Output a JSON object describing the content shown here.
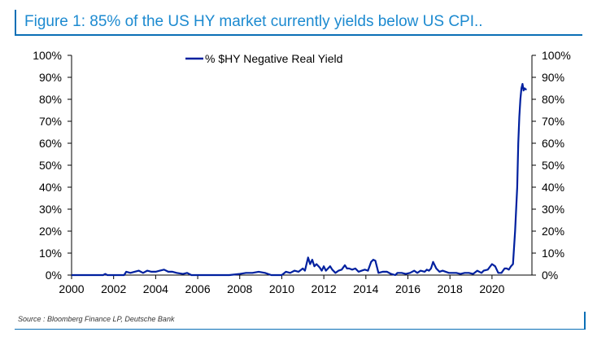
{
  "figure_title": "Figure 1: 85% of the US HY market currently yields below US CPI..",
  "source": "Source : Bloomberg Finance LP, Deutsche Bank",
  "chart_data": {
    "type": "line",
    "title": "Figure 1: 85% of the US HY market currently yields below US CPI..",
    "xlabel": "",
    "ylabel": "",
    "xlim": [
      2000,
      2021.9
    ],
    "ylim": [
      0,
      100
    ],
    "x_ticks": [
      2000,
      2002,
      2004,
      2006,
      2008,
      2010,
      2012,
      2014,
      2016,
      2018,
      2020
    ],
    "x_tick_labels": [
      "2000",
      "2002",
      "2004",
      "2006",
      "2008",
      "2010",
      "2012",
      "2014",
      "2016",
      "2018",
      "2020"
    ],
    "y_ticks": [
      0,
      10,
      20,
      30,
      40,
      50,
      60,
      70,
      80,
      90,
      100
    ],
    "y_tick_labels": [
      "0%",
      "10%",
      "20%",
      "30%",
      "40%",
      "50%",
      "60%",
      "70%",
      "80%",
      "90%",
      "100%"
    ],
    "y2_tick_labels": [
      "0%",
      "10%",
      "20%",
      "30%",
      "40%",
      "50%",
      "60%",
      "70%",
      "80%",
      "90%",
      "100%"
    ],
    "grid": false,
    "legend_position": "top-center",
    "series": [
      {
        "name": "% $HY Negative Real Yield",
        "color": "#00209f",
        "x": [
          2000.0,
          2000.5,
          2001.0,
          2001.5,
          2001.6,
          2001.7,
          2002.0,
          2002.5,
          2002.6,
          2002.8,
          2003.0,
          2003.2,
          2003.4,
          2003.6,
          2003.8,
          2004.0,
          2004.2,
          2004.4,
          2004.6,
          2004.8,
          2005.0,
          2005.3,
          2005.5,
          2005.7,
          2006.0,
          2006.2,
          2006.5,
          2007.0,
          2007.5,
          2008.0,
          2008.3,
          2008.6,
          2008.9,
          2009.2,
          2009.5,
          2009.8,
          2010.0,
          2010.2,
          2010.4,
          2010.6,
          2010.8,
          2011.0,
          2011.1,
          2011.25,
          2011.35,
          2011.45,
          2011.55,
          2011.65,
          2011.8,
          2011.9,
          2012.0,
          2012.1,
          2012.2,
          2012.3,
          2012.4,
          2012.55,
          2012.7,
          2012.85,
          2013.0,
          2013.1,
          2013.2,
          2013.35,
          2013.5,
          2013.65,
          2013.8,
          2013.95,
          2014.1,
          2014.25,
          2014.35,
          2014.45,
          2014.6,
          2014.8,
          2015.0,
          2015.2,
          2015.4,
          2015.5,
          2015.7,
          2015.9,
          2016.1,
          2016.3,
          2016.45,
          2016.6,
          2016.8,
          2016.9,
          2017.0,
          2017.1,
          2017.2,
          2017.35,
          2017.5,
          2017.65,
          2017.8,
          2017.95,
          2018.1,
          2018.3,
          2018.5,
          2018.7,
          2018.9,
          2019.1,
          2019.3,
          2019.5,
          2019.6,
          2019.8,
          2020.0,
          2020.15,
          2020.3,
          2020.45,
          2020.6,
          2020.7,
          2020.8,
          2020.9,
          2021.0,
          2021.1,
          2021.2,
          2021.25,
          2021.3,
          2021.35,
          2021.4,
          2021.45,
          2021.5,
          2021.55,
          2021.6,
          2021.65
        ],
        "y": [
          0.0,
          0.0,
          0.0,
          0.0,
          0.5,
          0.0,
          0.0,
          0.0,
          1.5,
          1.0,
          1.5,
          2.0,
          1.0,
          2.0,
          1.5,
          1.5,
          2.0,
          2.5,
          1.5,
          1.5,
          1.0,
          0.5,
          1.0,
          0.0,
          0.0,
          0.0,
          0.0,
          0.0,
          0.0,
          0.5,
          1.0,
          1.0,
          1.5,
          1.0,
          0.0,
          0.0,
          0.0,
          1.5,
          1.0,
          2.0,
          1.5,
          3.0,
          2.0,
          8.0,
          5.0,
          7.0,
          4.0,
          5.0,
          3.5,
          2.0,
          4.0,
          2.0,
          3.0,
          4.0,
          2.5,
          1.0,
          2.0,
          2.5,
          4.5,
          3.0,
          3.0,
          2.5,
          3.0,
          1.5,
          2.0,
          2.5,
          2.0,
          6.0,
          7.0,
          6.5,
          1.0,
          1.5,
          1.5,
          0.5,
          0.0,
          1.0,
          1.0,
          0.5,
          1.0,
          2.0,
          1.0,
          2.0,
          1.5,
          2.5,
          2.0,
          3.0,
          6.0,
          3.0,
          1.5,
          2.0,
          1.5,
          1.0,
          1.0,
          1.0,
          0.5,
          1.0,
          1.0,
          0.5,
          2.0,
          1.0,
          2.0,
          2.5,
          5.0,
          4.0,
          1.0,
          1.0,
          3.0,
          3.0,
          2.5,
          4.0,
          5.0,
          20.0,
          40.0,
          60.0,
          72.0,
          80.0,
          85.0,
          87.0,
          84.0,
          85.0,
          84.5,
          84.5
        ]
      }
    ]
  }
}
